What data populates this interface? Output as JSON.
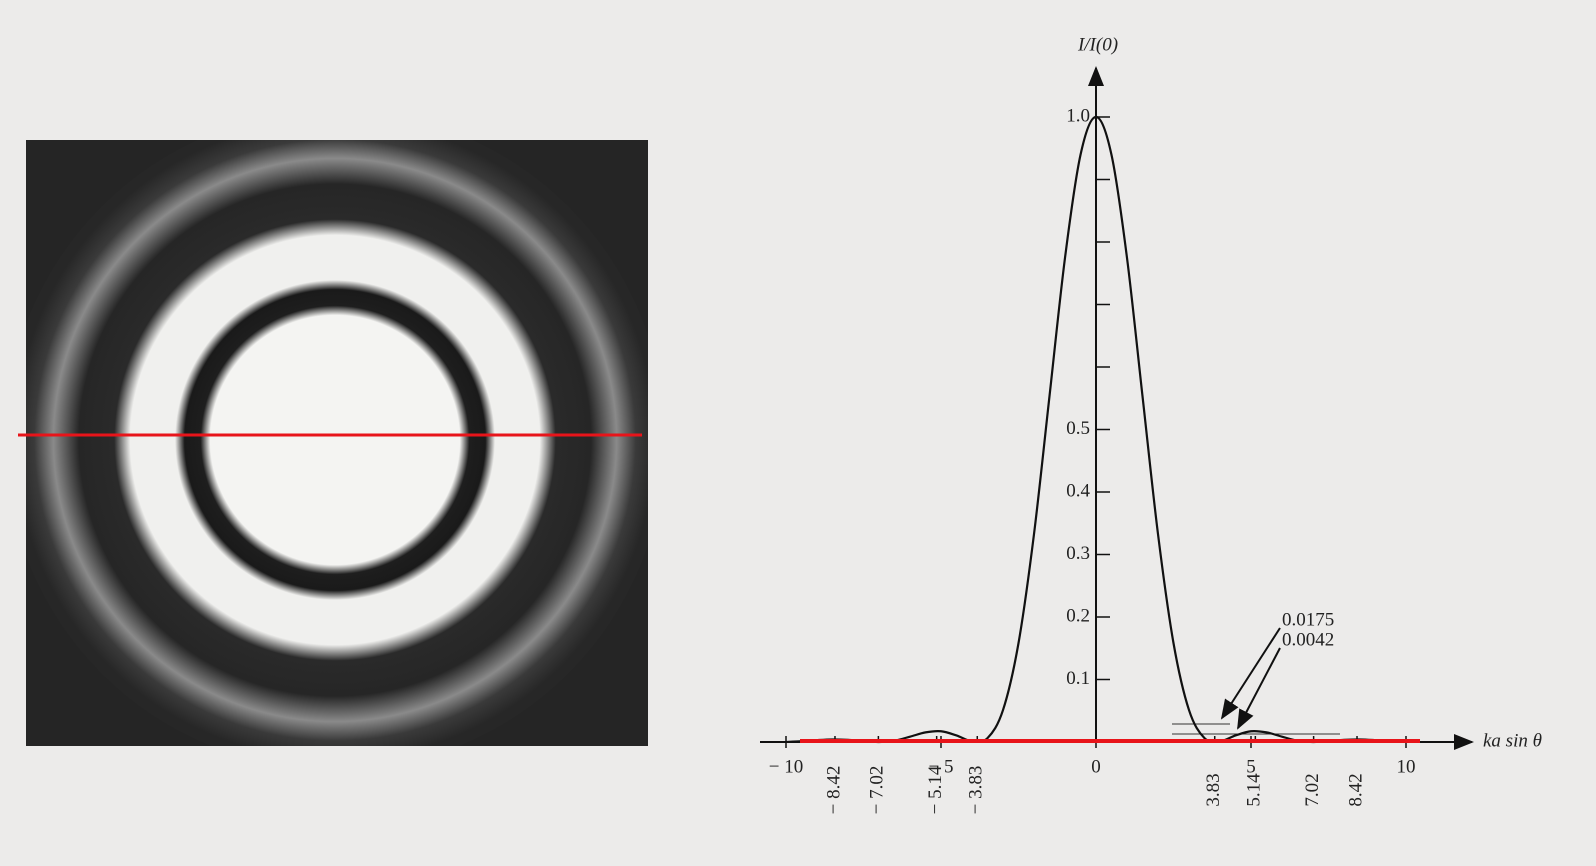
{
  "chart_data": {
    "type": "line",
    "y_label": "I/I(0)",
    "x_label": "ka sin θ",
    "x": [
      -10,
      -9.5,
      -9,
      -8.5,
      -8,
      -7.5,
      -7,
      -6.5,
      -6,
      -5.5,
      -5,
      -4.5,
      -4,
      -3.5,
      -3,
      -2.5,
      -2,
      -1.5,
      -1,
      -0.5,
      0,
      0.5,
      1,
      1.5,
      2,
      2.5,
      3,
      3.5,
      4,
      4.5,
      5,
      5.5,
      6,
      6.5,
      7,
      7.5,
      8,
      8.5,
      9,
      9.5,
      10
    ],
    "values": [
      0.0001,
      0.0012,
      0.003,
      0.0041,
      0.0034,
      0.0013,
      0,
      0.0022,
      0.0085,
      0.0154,
      0.0172,
      0.0105,
      0.0011,
      0.0062,
      0.0511,
      0.1582,
      0.3326,
      0.5534,
      0.7746,
      0.9394,
      1,
      0.9394,
      0.7746,
      0.5534,
      0.3326,
      0.1582,
      0.0511,
      0.0062,
      0.0011,
      0.0105,
      0.0172,
      0.0154,
      0.0085,
      0.0022,
      0,
      0.0013,
      0.0034,
      0.0041,
      0.003,
      0.0012,
      0.0001
    ],
    "color": "#111111",
    "xlim": [
      -11,
      12
    ],
    "ylim": [
      0,
      1.1
    ],
    "xticks": [
      {
        "value": -10,
        "label": "− 10"
      },
      {
        "value": -5,
        "label": "− 5"
      },
      0,
      5,
      10
    ],
    "yticks": [
      0.1,
      0.2,
      0.3,
      0.4,
      0.5,
      {
        "value": 1,
        "label": "1.0"
      }
    ],
    "y_minor_ticks": [
      0.6,
      0.7,
      0.8,
      0.9
    ],
    "x_marks": [
      {
        "value": -8.42,
        "label": "− 8.42"
      },
      {
        "value": -7.02,
        "label": "− 7.02"
      },
      {
        "value": -5.14,
        "label": "− 5.14"
      },
      {
        "value": -3.83,
        "label": "− 3.83"
      },
      3.83,
      5.14,
      7.02,
      8.42
    ],
    "annotations": [
      0.0175,
      0.0042
    ]
  }
}
